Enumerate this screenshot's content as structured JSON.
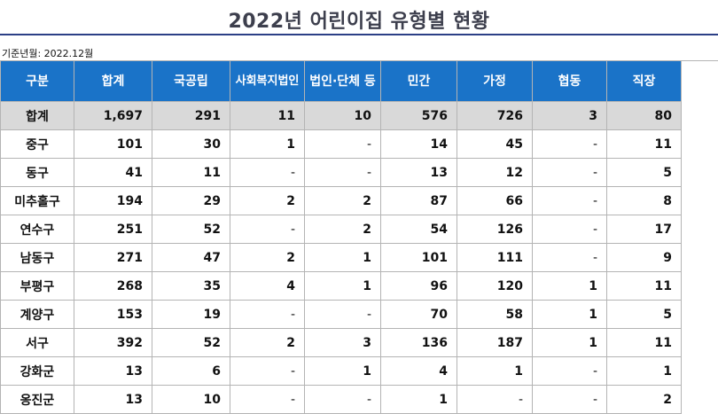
{
  "title": "2022년 어린이집 유형별 현황",
  "basis": "기준년월: 2022.12월",
  "columns": [
    "구분",
    "합계",
    "국공립",
    "사회복지법인",
    "법인·단체 등",
    "민간",
    "가정",
    "협동",
    "직장"
  ],
  "rows": [
    [
      "합계",
      "1,697",
      "291",
      "11",
      "10",
      "576",
      "726",
      "3",
      "80"
    ],
    [
      "중구",
      "101",
      "30",
      "1",
      "-",
      "14",
      "45",
      "-",
      "11"
    ],
    [
      "동구",
      "41",
      "11",
      "-",
      "-",
      "13",
      "12",
      "-",
      "5"
    ],
    [
      "미추홀구",
      "194",
      "29",
      "2",
      "2",
      "87",
      "66",
      "-",
      "8"
    ],
    [
      "연수구",
      "251",
      "52",
      "-",
      "2",
      "54",
      "126",
      "-",
      "17"
    ],
    [
      "남동구",
      "271",
      "47",
      "2",
      "1",
      "101",
      "111",
      "-",
      "9"
    ],
    [
      "부평구",
      "268",
      "35",
      "4",
      "1",
      "96",
      "120",
      "1",
      "11"
    ],
    [
      "계양구",
      "153",
      "19",
      "-",
      "-",
      "70",
      "58",
      "1",
      "5"
    ],
    [
      "서구",
      "392",
      "52",
      "2",
      "3",
      "136",
      "187",
      "1",
      "11"
    ],
    [
      "강화군",
      "13",
      "6",
      "-",
      "1",
      "4",
      "1",
      "-",
      "1"
    ],
    [
      "옹진군",
      "13",
      "10",
      "-",
      "-",
      "1",
      "-",
      "-",
      "2"
    ]
  ],
  "colors": {
    "header_bg": "#1a73c8",
    "total_row_bg": "#d9d9d9",
    "title_rule": "#2b3f86"
  }
}
